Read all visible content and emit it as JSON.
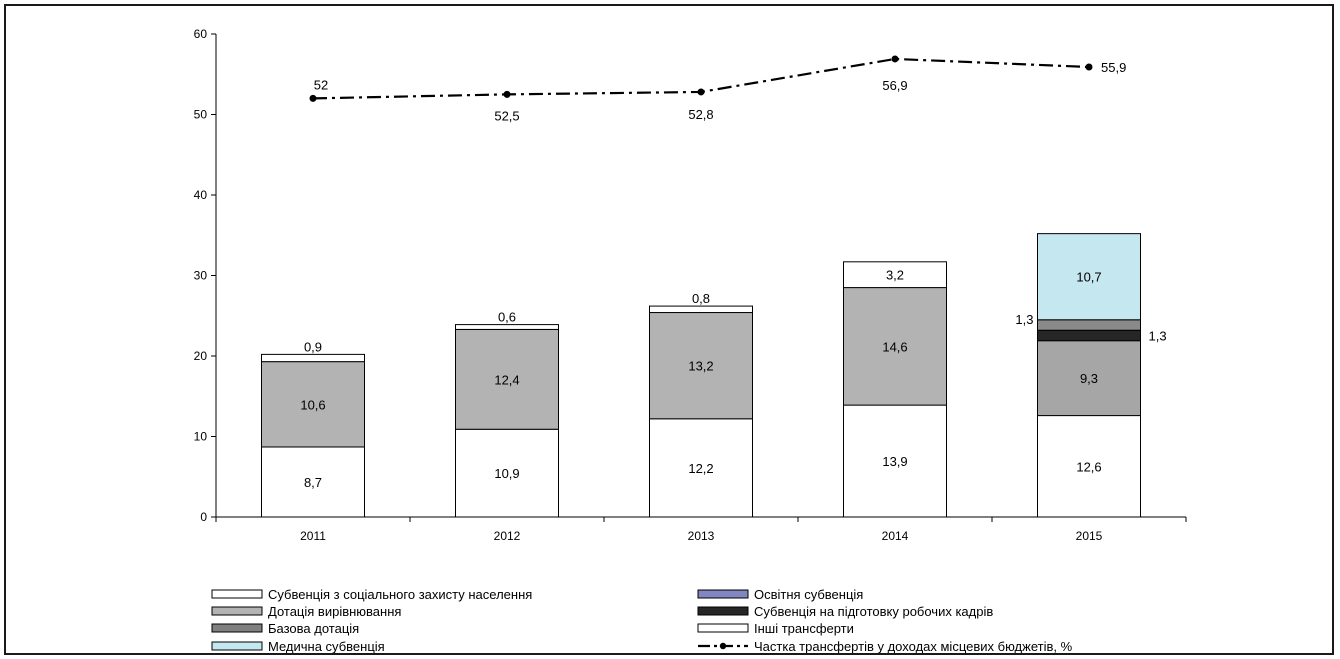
{
  "chart_data": {
    "type": "bar",
    "stacked": true,
    "categories": [
      "2011",
      "2012",
      "2013",
      "2014",
      "2015"
    ],
    "ylim": [
      0,
      60
    ],
    "yticks": [
      0,
      10,
      20,
      30,
      40,
      50,
      60
    ],
    "grid": false,
    "legend_position": "bottom",
    "series": [
      {
        "name": "Субвенція з соціального захисту населення",
        "color": "#ffffff",
        "values": [
          8.7,
          10.9,
          12.2,
          13.9,
          12.6
        ],
        "labels": [
          "8,7",
          "10,9",
          "12,2",
          "13,9",
          "12,6"
        ]
      },
      {
        "name": "Дотація вирівнювання",
        "color": "#b3b3b3",
        "values": [
          10.6,
          12.4,
          13.2,
          14.6,
          0
        ],
        "labels": [
          "10,6",
          "12,4",
          "13,2",
          "14,6",
          ""
        ]
      },
      {
        "name": "Базова дотація",
        "color": "#a6a6a6",
        "values": [
          0,
          0,
          0,
          0,
          9.3
        ],
        "labels": [
          "",
          "",
          "",
          "",
          "9,3"
        ]
      },
      {
        "name": "Субвенція на підготовку робочих кадрів",
        "color": "#262626",
        "values": [
          0,
          0,
          0,
          0,
          1.3
        ],
        "labels": [
          "",
          "",
          "",
          "",
          "1,3"
        ]
      },
      {
        "name": "Освітня субвенція",
        "color": "#8a8a8a",
        "values": [
          0,
          0,
          0,
          0,
          1.3
        ],
        "labels": [
          "",
          "",
          "",
          "",
          "1,3"
        ]
      },
      {
        "name": "Медична субвенція",
        "color": "#c5e7ef",
        "values": [
          0,
          0,
          0,
          0,
          10.7
        ],
        "labels": [
          "",
          "",
          "",
          "",
          "10,7"
        ]
      },
      {
        "name": "Інші трансферти",
        "color": "#ffffff",
        "values": [
          0.9,
          0.6,
          0.8,
          3.2,
          0
        ],
        "labels": [
          "0,9",
          "0,6",
          "0,8",
          "3,2",
          ""
        ]
      }
    ],
    "line": {
      "name": "Частка трансфертів у доходах місцевих бюджетів, %",
      "values": [
        52,
        52.5,
        52.8,
        56.9,
        55.9
      ],
      "labels": [
        "52",
        "52,5",
        "52,8",
        "56,9",
        "55,9"
      ]
    },
    "legend": [
      {
        "label": "Субвенція з соціального захисту населення",
        "swatch": "#ffffff",
        "kind": "box"
      },
      {
        "label": "Освітня субвенція",
        "swatch": "#7f86c0",
        "kind": "box"
      },
      {
        "label": "Дотація вирівнювання",
        "swatch": "#b3b3b3",
        "kind": "box"
      },
      {
        "label": "Субвенція на підготовку робочих кадрів",
        "swatch": "#262626",
        "kind": "box"
      },
      {
        "label": "Базова дотація",
        "swatch": "#808080",
        "kind": "box"
      },
      {
        "label": "Інші трансферти",
        "swatch": "#ffffff",
        "kind": "box"
      },
      {
        "label": "Медична субвенція",
        "swatch": "#c5e7ef",
        "kind": "box"
      },
      {
        "label": "Частка трансфертів у доходах місцевих бюджетів, %",
        "swatch": "#000000",
        "kind": "line"
      }
    ]
  }
}
